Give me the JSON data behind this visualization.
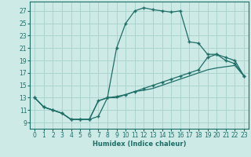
{
  "xlabel": "Humidex (Indice chaleur)",
  "bg_color": "#cdeae6",
  "grid_color": "#aad4ce",
  "line_color": "#1e6e68",
  "xlim": [
    -0.5,
    23.5
  ],
  "ylim": [
    8.0,
    28.5
  ],
  "xticks": [
    0,
    1,
    2,
    3,
    4,
    5,
    6,
    7,
    8,
    9,
    10,
    11,
    12,
    13,
    14,
    15,
    16,
    17,
    18,
    19,
    20,
    21,
    22,
    23
  ],
  "yticks": [
    9,
    11,
    13,
    15,
    17,
    19,
    21,
    23,
    25,
    27
  ],
  "curve1_x": [
    0,
    1,
    2,
    3,
    4,
    5,
    6,
    7,
    8,
    9,
    10,
    11,
    12,
    13,
    14,
    15,
    16,
    17,
    18,
    19,
    20,
    21,
    22,
    23
  ],
  "curve1_y": [
    13,
    11.5,
    11,
    10.5,
    9.5,
    9.5,
    9.5,
    10,
    13,
    21,
    25,
    27,
    27.5,
    27.2,
    27,
    26.8,
    27,
    22,
    21.8,
    20,
    20,
    19,
    18.5,
    16.5
  ],
  "curve2_x": [
    0,
    1,
    2,
    3,
    4,
    5,
    6,
    7,
    8,
    9,
    10,
    11,
    12,
    13,
    14,
    15,
    16,
    17,
    18,
    19,
    20,
    21,
    22,
    23
  ],
  "curve2_y": [
    13,
    11.5,
    11,
    10.5,
    9.5,
    9.5,
    9.5,
    12.5,
    13,
    13.2,
    13.5,
    14,
    14.5,
    15,
    15.5,
    16,
    16.5,
    17,
    17.5,
    19.5,
    20,
    19.5,
    19,
    16.5
  ],
  "curve3_x": [
    0,
    1,
    2,
    3,
    4,
    5,
    6,
    7,
    8,
    9,
    10,
    11,
    12,
    13,
    14,
    15,
    16,
    17,
    18,
    19,
    20,
    21,
    22,
    23
  ],
  "curve3_y": [
    13,
    11.5,
    11,
    10.5,
    9.5,
    9.5,
    9.5,
    12.5,
    13,
    13,
    13.5,
    14,
    14.2,
    14.5,
    15,
    15.5,
    16,
    16.5,
    17,
    17.5,
    17.8,
    18,
    18.2,
    16.5
  ]
}
